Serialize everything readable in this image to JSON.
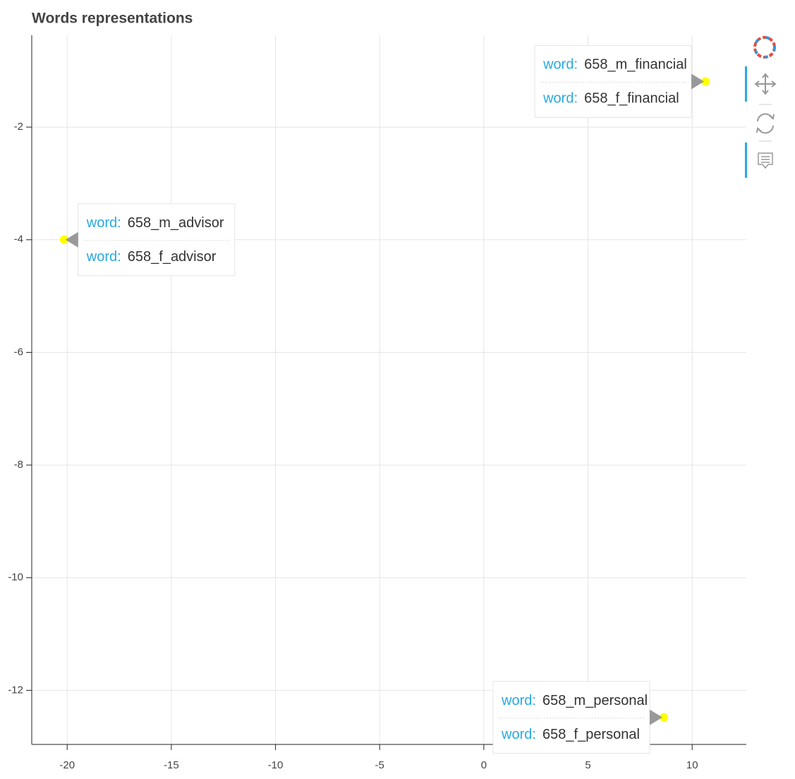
{
  "chart_data": {
    "type": "scatter",
    "title": "Words representations",
    "x": [
      10.64,
      10.64,
      -20.15,
      -20.15,
      8.64,
      8.64
    ],
    "values": [
      -1.19,
      -1.19,
      -4.0,
      -4.0,
      -12.48,
      -12.48
    ],
    "point_labels": [
      "658_m_financial",
      "658_f_financial",
      "658_m_advisor",
      "658_f_advisor",
      "658_m_personal",
      "658_f_personal"
    ],
    "tooltip_field": "word:",
    "color": "#ffff00",
    "xlim": [
      -21.7,
      12.6
    ],
    "xticks": [
      -20,
      -15,
      -10,
      -5,
      0,
      5,
      10
    ],
    "ylim": [
      -12.96,
      -0.37
    ],
    "yticks": [
      -2,
      -4,
      -6,
      -8,
      -10,
      -12
    ],
    "grid": true
  }
}
